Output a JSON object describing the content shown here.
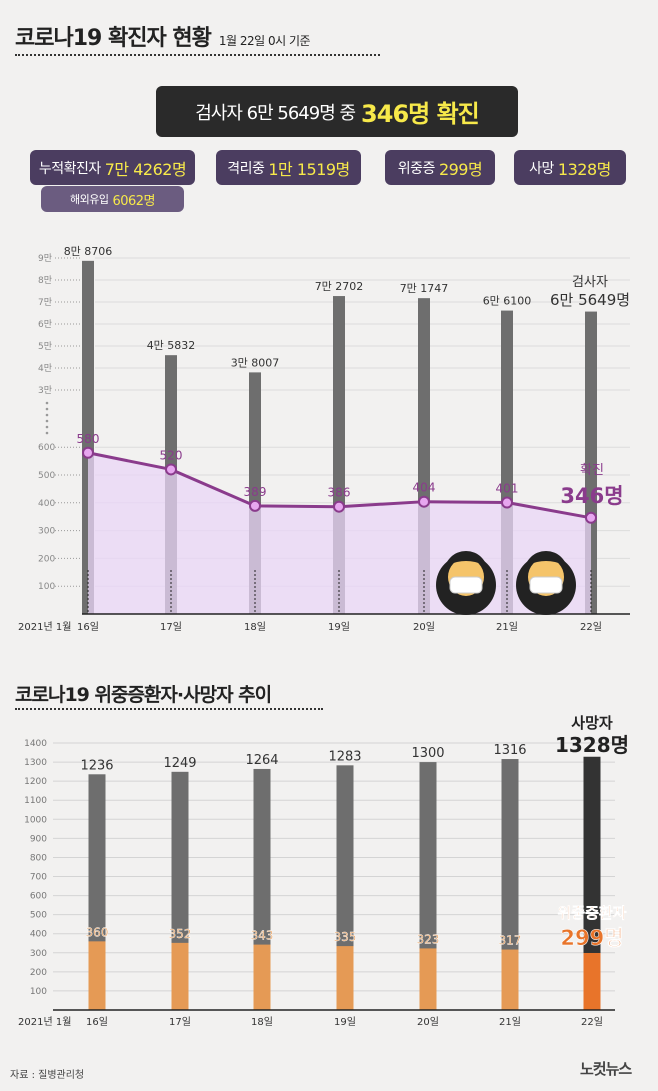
{
  "header": {
    "title": "코로나19 확진자 현황",
    "subtitle": "1월 22일 0시 기준"
  },
  "headline": {
    "prefix": "검사자 6만 5649명 중",
    "highlight": "346명 확진"
  },
  "stats": [
    {
      "label": "누적확진자",
      "value": "7만 4262명"
    },
    {
      "label": "격리중",
      "value": "1만 1519명"
    },
    {
      "label": "위중증",
      "value": "299명"
    },
    {
      "label": "사망",
      "value": "1328명"
    }
  ],
  "sub_stat": {
    "label": "해외유입",
    "value": "6062명"
  },
  "section2_title": "코로나19 위중증환자·사망자 추이",
  "source": "자료 : 질병관리청",
  "logo": "노컷뉴스",
  "colors": {
    "purple": "#8a3b8c",
    "fill": "#ead6f7",
    "gray": "#6e6e6e",
    "orange": "#e59a55",
    "orange_hi": "#e8742a",
    "dark": "#333333"
  },
  "chart_data": [
    {
      "type": "bar+line",
      "xlabel_prefix": "2021년 1월",
      "categories": [
        "16일",
        "17일",
        "18일",
        "19일",
        "20일",
        "21일",
        "22일"
      ],
      "series": [
        {
          "name": "검사자",
          "values": [
            88706,
            45832,
            38007,
            72702,
            71747,
            66100,
            65649
          ],
          "labels": [
            "8만 8706",
            "4만 5832",
            "3만 8007",
            "7만 2702",
            "7만 1747",
            "6만 6100",
            "6만 5649"
          ]
        },
        {
          "name": "확진",
          "values": [
            580,
            520,
            389,
            386,
            404,
            401,
            346
          ]
        }
      ],
      "y_upper_ticks": [
        "3만",
        "4만",
        "5만",
        "6만",
        "7만",
        "8만",
        "9만"
      ],
      "y_lower_ticks": [
        "100",
        "200",
        "300",
        "400",
        "500",
        "600"
      ],
      "annotations": {
        "tests_title": "검사자",
        "tests_value": "6만 5649명",
        "conf_title": "확진",
        "conf_value": "346명"
      }
    },
    {
      "type": "bar",
      "title": "코로나19 위중증환자·사망자 추이",
      "xlabel_prefix": "2021년 1월",
      "categories": [
        "16일",
        "17일",
        "18일",
        "19일",
        "20일",
        "21일",
        "22일"
      ],
      "series": [
        {
          "name": "사망자",
          "values": [
            1236,
            1249,
            1264,
            1283,
            1300,
            1316,
            1328
          ]
        },
        {
          "name": "위중증환자",
          "values": [
            360,
            352,
            343,
            335,
            323,
            317,
            299
          ]
        }
      ],
      "y_ticks": [
        100,
        200,
        300,
        400,
        500,
        600,
        700,
        800,
        900,
        1000,
        1100,
        1200,
        1300,
        1400
      ],
      "ylim": [
        0,
        1400
      ],
      "annotations": {
        "deaths_title": "사망자",
        "deaths_value": "1328명",
        "severe_title": "위중증환자",
        "severe_value": "299명"
      }
    }
  ]
}
